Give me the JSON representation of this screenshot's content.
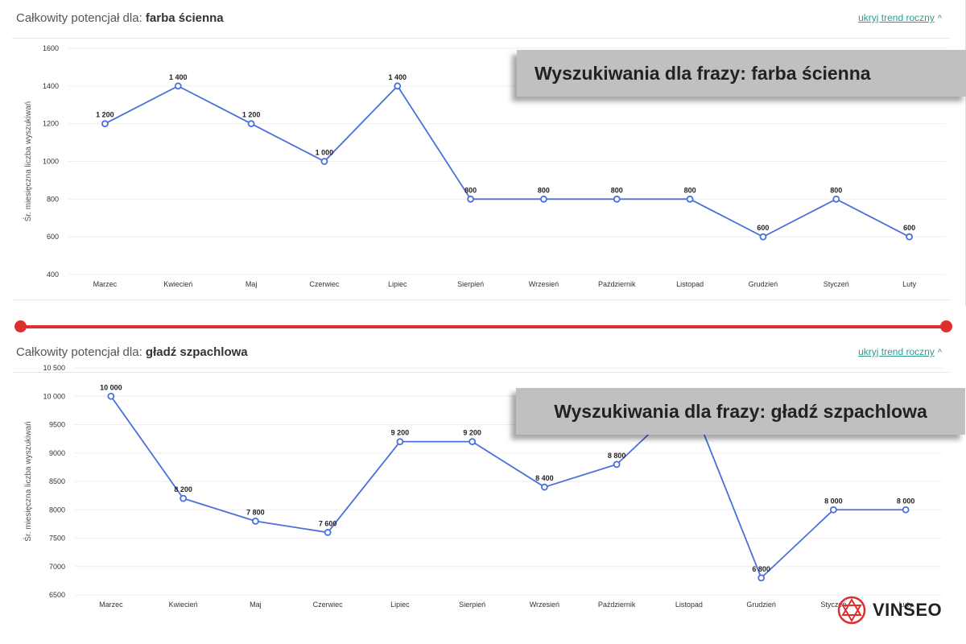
{
  "panels": [
    {
      "title_prefix": "Całkowity potencjał dla:",
      "keyword": "farba ścienna",
      "toggle_label": "ukryj trend roczny",
      "banner": "Wyszukiwania dla frazy: farba ścienna"
    },
    {
      "title_prefix": "Całkowity potencjał dla:",
      "keyword": "gładź szpachlowa",
      "toggle_label": "ukryj trend roczny",
      "banner": "Wyszukiwania dla frazy: gładź szpachlowa"
    }
  ],
  "brand": {
    "name": "VINSEO",
    "accent": "#dd2f2f"
  },
  "colors": {
    "line": "#4a6fdc",
    "grid": "#eeeeee",
    "divider": "#dd2f2f"
  },
  "chart_data": [
    {
      "type": "line",
      "categories": [
        "Marzec",
        "Kwiecień",
        "Maj",
        "Czerwiec",
        "Lipiec",
        "Sierpień",
        "Wrzesień",
        "Październik",
        "Listopad",
        "Grudzień",
        "Styczeń",
        "Luty"
      ],
      "values": [
        1200,
        1400,
        1200,
        1000,
        1400,
        800,
        800,
        800,
        800,
        600,
        800,
        600
      ],
      "value_labels": [
        "1 200",
        "1 400",
        "1 200",
        "1 000",
        "1 400",
        "800",
        "800",
        "800",
        "800",
        "600",
        "800",
        "600"
      ],
      "ylabel": "Śr. miesięczna liczba wyszukiwań",
      "ylim": [
        400,
        1600
      ],
      "yticks": [
        400,
        600,
        800,
        1000,
        1200,
        1400,
        1600
      ],
      "ytick_labels": [
        "400",
        "600",
        "800",
        "1000",
        "1200",
        "1400",
        "1600"
      ],
      "grid": true,
      "legend": "none"
    },
    {
      "type": "line",
      "categories": [
        "Marzec",
        "Kwiecień",
        "Maj",
        "Czerwiec",
        "Lipiec",
        "Sierpień",
        "Wrzesień",
        "Październik",
        "Listopad",
        "Grudzień",
        "Styczeń",
        "Luty"
      ],
      "values": [
        10000,
        8200,
        7800,
        7600,
        9200,
        9200,
        8400,
        8800,
        10000,
        6800,
        8000,
        8000
      ],
      "value_labels": [
        "10 000",
        "8 200",
        "7 800",
        "7 600",
        "9 200",
        "9 200",
        "8 400",
        "8 800",
        "",
        "6 800",
        "8 000",
        "8 000"
      ],
      "ylabel": "Śr. miesięczna liczba wyszukiwań",
      "ylim": [
        6500,
        10500
      ],
      "yticks": [
        6500,
        7000,
        7500,
        8000,
        8500,
        9000,
        9500,
        10000,
        10500
      ],
      "ytick_labels": [
        "6500",
        "7000",
        "7500",
        "8000",
        "8500",
        "9000",
        "9500",
        "10 000",
        "10 500"
      ],
      "grid": true,
      "legend": "none"
    }
  ]
}
